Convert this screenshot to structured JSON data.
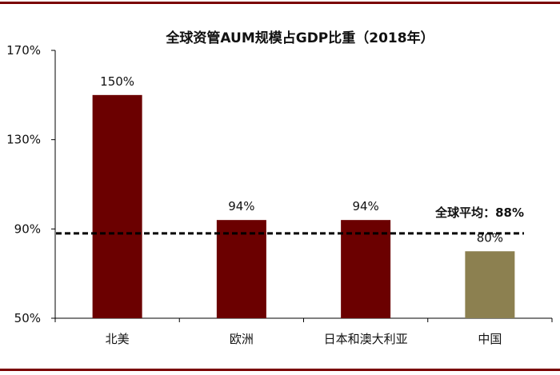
{
  "chart_data": {
    "type": "bar",
    "title": "全球资管AUM规模占GDP比重（2018年）",
    "categories": [
      "北美",
      "欧洲",
      "日本和澳大利亚",
      "中国"
    ],
    "values": [
      150,
      94,
      94,
      80
    ],
    "data_labels": [
      "150%",
      "94%",
      "94%",
      "80%"
    ],
    "bar_colors": [
      "#6b0000",
      "#6b0000",
      "#6b0000",
      "#8c8050"
    ],
    "ylim": [
      50,
      170
    ],
    "yticks": [
      50,
      90,
      130,
      170
    ],
    "ytick_labels": [
      "50%",
      "90%",
      "130%",
      "170%"
    ],
    "xlabel": "",
    "ylabel": "",
    "grid": false,
    "reference_line": {
      "value": 88,
      "label": "全球平均：88%",
      "style": "dashed",
      "color": "#000000"
    }
  },
  "colors": {
    "rule": "#7a0000",
    "axis": "#000000"
  }
}
